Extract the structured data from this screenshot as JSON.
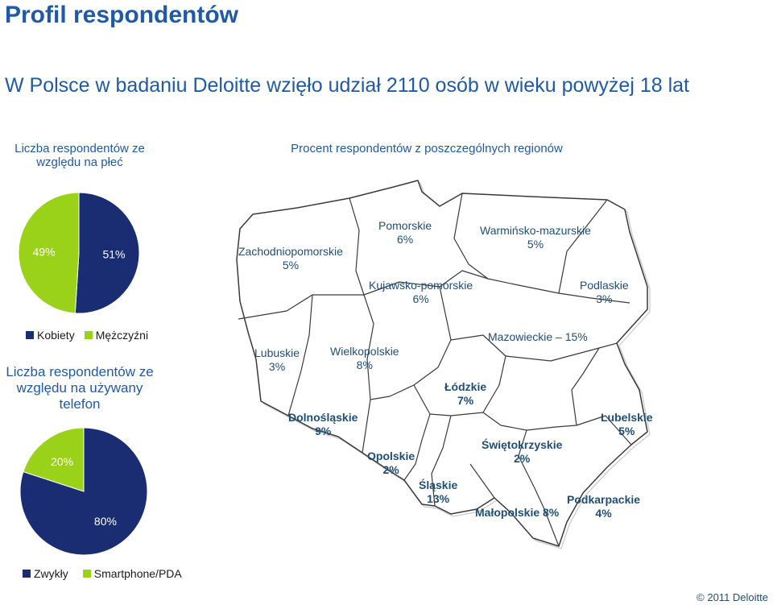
{
  "title": "Profil respondentów",
  "subtitle": "W Polsce w badaniu Deloitte wzięło udział 2110 osób w wieku powyżej 18 lat",
  "copyright": "© 2011 Deloitte",
  "colors": {
    "navy": "#1a2d73",
    "green": "#9ad21a",
    "text_blue": "#1f5aa6"
  },
  "chart_data": [
    {
      "type": "pie",
      "title": "Liczba respondentów ze względu na płeć",
      "slices": [
        {
          "name": "Kobiety",
          "value": 49,
          "label": "49%",
          "color": "#9ad21a"
        },
        {
          "name": "Mężczyźni",
          "value": 51,
          "label": "51%",
          "color": "#1a2d73"
        }
      ],
      "legend_position": "bottom"
    },
    {
      "type": "pie",
      "title": "Liczba respondentów ze względu na używany telefon",
      "slices": [
        {
          "name": "Zwykły",
          "value": 80,
          "label": "80%",
          "color": "#1a2d73"
        },
        {
          "name": "Smartphone/PDA",
          "value": 20,
          "label": "20%",
          "color": "#9ad21a"
        }
      ],
      "legend_position": "bottom"
    },
    {
      "type": "table",
      "title": "Procent respondentów z poszczególnych regionów",
      "regions": [
        {
          "name": "Zachodniopomorskie",
          "value": "5%"
        },
        {
          "name": "Pomorskie",
          "value": "6%"
        },
        {
          "name": "Warmińsko-mazurskie",
          "value": "5%"
        },
        {
          "name": "Kujawsko-pomorskie",
          "value": "6%"
        },
        {
          "name": "Podlaskie",
          "value": "3%"
        },
        {
          "name": "Lubuskie",
          "value": "3%"
        },
        {
          "name": "Wielkopolskie",
          "value": "8%"
        },
        {
          "name": "Mazowieckie – 15%",
          "value": ""
        },
        {
          "name": "Łódzkie",
          "value": "7%"
        },
        {
          "name": "Dolnośląskie",
          "value": "9%"
        },
        {
          "name": "Lubelskie",
          "value": "5%"
        },
        {
          "name": "Świętokrzyskie",
          "value": "2%"
        },
        {
          "name": "Opolskie",
          "value": "2%"
        },
        {
          "name": "Śląskie",
          "value": "13%"
        },
        {
          "name": "Podkarpackie",
          "value": "4%"
        },
        {
          "name": "Małopolskie 8%",
          "value": ""
        }
      ]
    }
  ]
}
